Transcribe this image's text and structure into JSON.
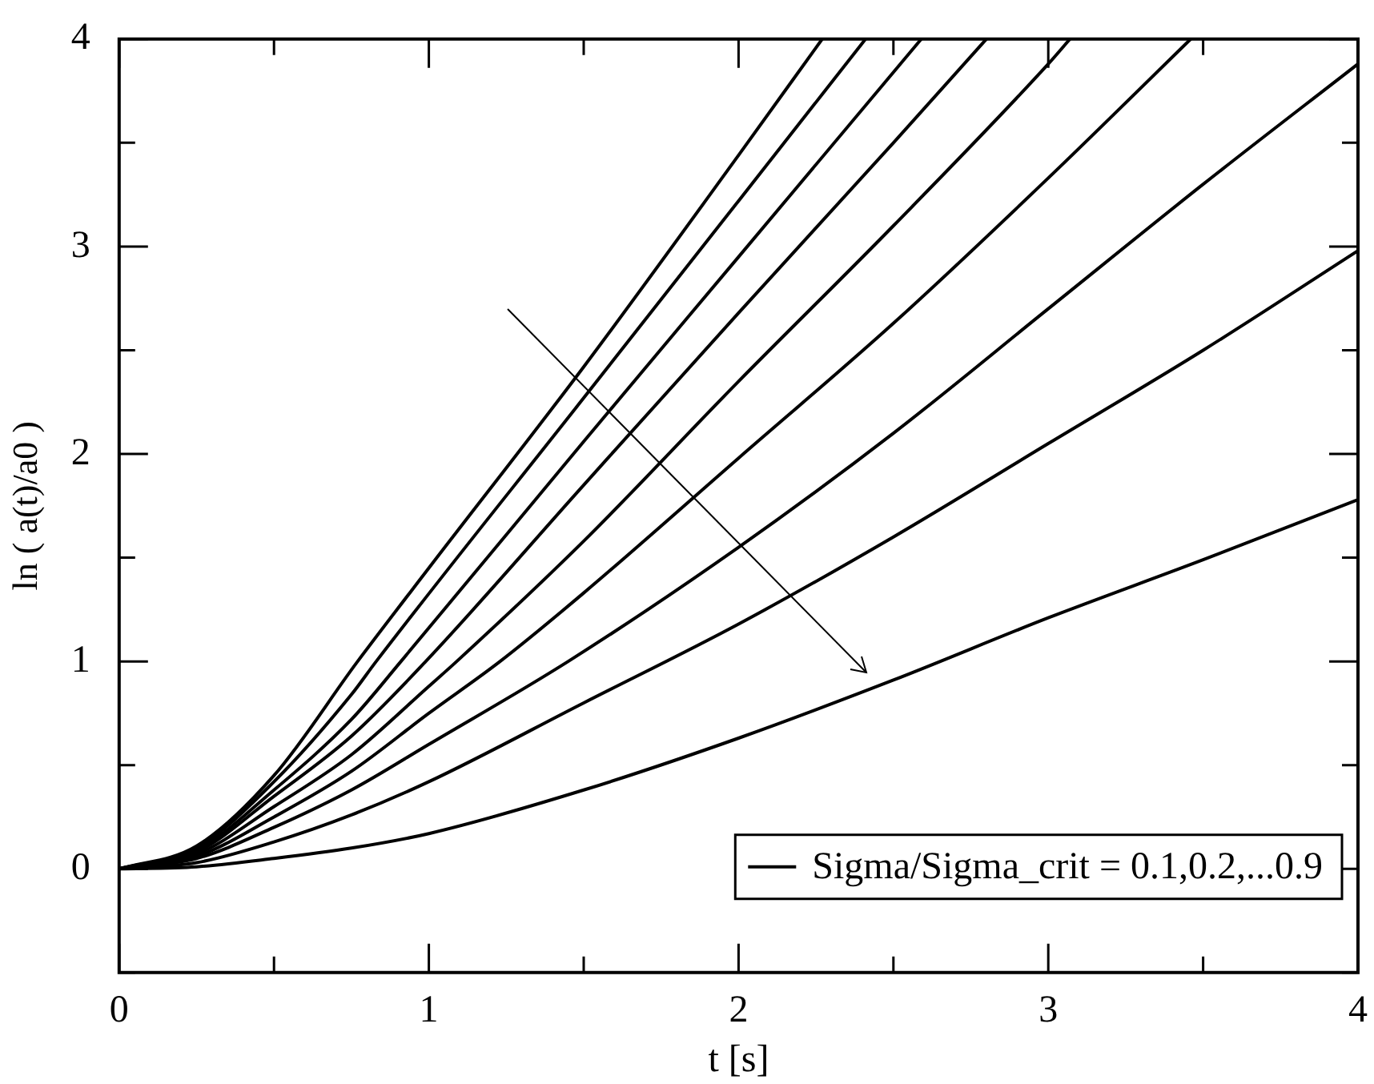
{
  "chart_data": {
    "type": "line",
    "xlabel": "t [s]",
    "ylabel": "ln ( a(t)/a0 )",
    "xlim": [
      0,
      4
    ],
    "ylim": [
      -0.5,
      4
    ],
    "xticks": [
      0,
      {
        "value": 0.5,
        "label": null
      },
      1,
      {
        "value": 1.5,
        "label": null
      },
      2,
      {
        "value": 2.5,
        "label": null
      },
      3,
      {
        "value": 3.5,
        "label": null
      },
      4
    ],
    "yticks": [
      {
        "value": -0.5,
        "label": null
      },
      0,
      {
        "value": 0.5,
        "label": null
      },
      1,
      {
        "value": 1.5,
        "label": null
      },
      2,
      {
        "value": 2.5,
        "label": null
      },
      3,
      {
        "value": 3.5,
        "label": null
      },
      4
    ],
    "grid": false,
    "legend": "bottom right",
    "marker": "none",
    "line_style": "solid",
    "series": [
      {
        "name": "Sigma/Sigma_crit = 0.1,0.2,...0.9",
        "color": "#000000",
        "x": [
          0,
          0.25,
          0.5,
          0.75,
          1,
          1.5,
          2,
          2.5,
          3,
          3.5,
          4
        ],
        "values": [
          0,
          0.01,
          0.05,
          0.1,
          0.17,
          0.38,
          0.63,
          0.91,
          1.21,
          1.49,
          1.78
        ]
      },
      {
        "color": "#000000",
        "x": [
          0,
          0.25,
          0.5,
          0.75,
          1,
          1.5,
          2,
          2.5,
          3,
          3.5,
          4
        ],
        "values": [
          0,
          0.03,
          0.13,
          0.26,
          0.42,
          0.8,
          1.18,
          1.6,
          2.05,
          2.5,
          2.98
        ]
      },
      {
        "color": "#000000",
        "x": [
          0,
          0.25,
          0.5,
          0.75,
          1,
          1.45,
          2,
          2.5,
          3,
          3.5,
          4
        ],
        "values": [
          0,
          0.05,
          0.2,
          0.38,
          0.6,
          1.0,
          1.55,
          2.1,
          2.7,
          3.3,
          3.88
        ]
      },
      {
        "color": "#000000",
        "x": [
          0,
          0.25,
          0.5,
          0.75,
          1,
          1.23,
          1.5,
          2,
          2.5,
          3,
          3.46
        ],
        "values": [
          0,
          0.06,
          0.25,
          0.47,
          0.75,
          1.0,
          1.33,
          1.98,
          2.63,
          3.33,
          4
        ]
      },
      {
        "color": "#000000",
        "x": [
          0,
          0.25,
          0.5,
          0.75,
          1,
          1.09,
          1.5,
          2,
          2.5,
          3,
          3.07
        ],
        "values": [
          0,
          0.07,
          0.3,
          0.55,
          0.88,
          1.0,
          1.58,
          2.35,
          3.1,
          3.88,
          4
        ]
      },
      {
        "color": "#000000",
        "x": [
          0,
          0.25,
          0.5,
          0.75,
          0.99,
          1.5,
          2,
          2.5,
          2.8
        ],
        "values": [
          0,
          0.08,
          0.35,
          0.64,
          1.0,
          1.85,
          2.68,
          3.5,
          4
        ]
      },
      {
        "color": "#000000",
        "x": [
          0,
          0.25,
          0.5,
          0.75,
          0.91,
          1.5,
          2,
          2.5,
          2.59
        ],
        "values": [
          0,
          0.09,
          0.38,
          0.72,
          1.0,
          2.06,
          2.95,
          3.84,
          4
        ]
      },
      {
        "color": "#000000",
        "x": [
          0,
          0.25,
          0.5,
          0.75,
          0.83,
          1.5,
          2,
          2.41
        ],
        "values": [
          0,
          0.1,
          0.42,
          0.84,
          1.0,
          2.27,
          3.22,
          4
        ]
      },
      {
        "color": "#000000",
        "x": [
          0,
          0.25,
          0.5,
          0.77,
          1,
          1.5,
          2,
          2.27
        ],
        "values": [
          0,
          0.11,
          0.45,
          1.0,
          1.45,
          2.42,
          3.44,
          4
        ]
      }
    ]
  }
}
